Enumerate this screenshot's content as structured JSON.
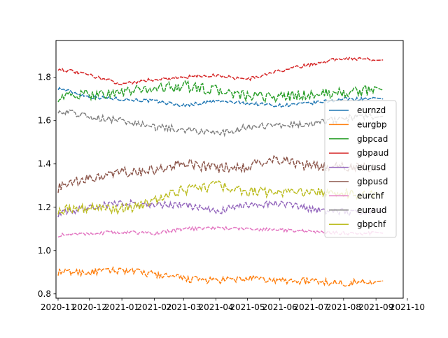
{
  "chart_data": {
    "type": "line",
    "title": "",
    "xlabel": "",
    "ylabel": "",
    "x_range": [
      "2020-10-30",
      "2021-09-27"
    ],
    "ylim": [
      0.78,
      1.97
    ],
    "x_ticks": [
      "2020-11",
      "2020-12",
      "2021-01",
      "2021-02",
      "2021-03",
      "2021-04",
      "2021-05",
      "2021-06",
      "2021-07",
      "2021-08",
      "2021-09",
      "2021-10"
    ],
    "y_ticks": [
      "0.8",
      "1.0",
      "1.2",
      "1.4",
      "1.6",
      "1.8"
    ],
    "grid": false,
    "legend_position": "right",
    "x": [
      "2020-11-01",
      "2020-12-01",
      "2021-01-01",
      "2021-02-01",
      "2021-03-01",
      "2021-04-01",
      "2021-05-01",
      "2021-06-01",
      "2021-07-01",
      "2021-08-01",
      "2021-09-01"
    ],
    "series": [
      {
        "name": "eurnzd",
        "color": "#1f77b4",
        "values": [
          1.75,
          1.71,
          1.7,
          1.69,
          1.67,
          1.69,
          1.68,
          1.67,
          1.68,
          1.7,
          1.7
        ]
      },
      {
        "name": "eurgbp",
        "color": "#ff7f0e",
        "values": [
          0.9,
          0.9,
          0.91,
          0.89,
          0.87,
          0.86,
          0.87,
          0.86,
          0.86,
          0.85,
          0.86
        ]
      },
      {
        "name": "gbpcad",
        "color": "#2ca02c",
        "values": [
          1.71,
          1.72,
          1.73,
          1.75,
          1.76,
          1.74,
          1.71,
          1.71,
          1.72,
          1.73,
          1.74
        ]
      },
      {
        "name": "gbpaud",
        "color": "#d62728",
        "values": [
          1.84,
          1.81,
          1.77,
          1.79,
          1.8,
          1.81,
          1.79,
          1.83,
          1.86,
          1.89,
          1.88
        ]
      },
      {
        "name": "eurusd",
        "color": "#9467bd",
        "values": [
          1.17,
          1.2,
          1.22,
          1.21,
          1.21,
          1.18,
          1.21,
          1.22,
          1.19,
          1.18,
          1.18
        ]
      },
      {
        "name": "gbpusd",
        "color": "#8c564b",
        "values": [
          1.29,
          1.33,
          1.36,
          1.37,
          1.4,
          1.38,
          1.39,
          1.42,
          1.39,
          1.39,
          1.38
        ]
      },
      {
        "name": "eurchf",
        "color": "#e377c2",
        "values": [
          1.07,
          1.08,
          1.085,
          1.08,
          1.1,
          1.105,
          1.1,
          1.095,
          1.09,
          1.08,
          1.08
        ]
      },
      {
        "name": "euraud",
        "color": "#7f7f7f",
        "values": [
          1.65,
          1.62,
          1.6,
          1.57,
          1.56,
          1.54,
          1.57,
          1.58,
          1.59,
          1.61,
          1.62
        ]
      },
      {
        "name": "gbpchf",
        "color": "#bcbd22",
        "values": [
          1.19,
          1.2,
          1.19,
          1.23,
          1.28,
          1.3,
          1.27,
          1.27,
          1.27,
          1.27,
          1.25
        ]
      }
    ]
  }
}
